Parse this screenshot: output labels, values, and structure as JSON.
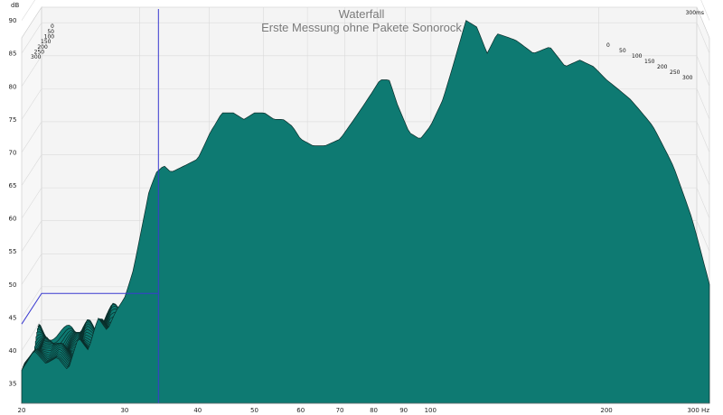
{
  "chart_data": {
    "type": "area",
    "title": "Waterfall",
    "subtitle": "Erste Messung ohne Pakete Sonorock",
    "y_unit_label": "dB",
    "x_unit_label": "Hz",
    "x_scale": "log",
    "xlim": [
      20,
      300
    ],
    "ylim": [
      32,
      92
    ],
    "x_ticks": [
      "20",
      "30",
      "40",
      "50",
      "60",
      "70",
      "80",
      "90",
      "100",
      "200",
      "300 Hz"
    ],
    "y_ticks": [
      "35",
      "40",
      "45",
      "50",
      "55",
      "60",
      "65",
      "70",
      "75",
      "80",
      "85",
      "90"
    ],
    "time_slices_ms": [
      "0",
      "50",
      "100",
      "150",
      "200",
      "250",
      "300"
    ],
    "time_axis_label_last": "300ms",
    "cursor_frequency_hz": 34,
    "fill_color": "#0e7a72",
    "line_color": "#0a2d2a",
    "front_curve": {
      "x": [
        20,
        21,
        22,
        23,
        24,
        25,
        26,
        27,
        28,
        29,
        30,
        31,
        32,
        33,
        34,
        35,
        36,
        38,
        40,
        42,
        44,
        46,
        48,
        50,
        52,
        54,
        56,
        58,
        60,
        63,
        66,
        70,
        74,
        78,
        82,
        85,
        88,
        92,
        96,
        100,
        105,
        110,
        115,
        120,
        125,
        130,
        140,
        150,
        160,
        170,
        180,
        190,
        200,
        220,
        240,
        260,
        280,
        300
      ],
      "y": [
        37,
        40,
        38,
        39,
        37,
        42,
        40,
        45,
        43,
        46,
        48,
        52,
        58,
        64,
        67,
        68,
        67,
        68,
        69,
        73,
        76,
        76,
        75,
        76,
        76,
        75,
        75,
        74,
        72,
        71,
        71,
        72,
        75,
        78,
        81,
        81,
        77,
        73,
        72,
        74,
        78,
        84,
        90,
        89,
        85,
        88,
        87,
        85,
        86,
        83,
        84,
        83,
        81,
        78,
        74,
        68,
        60,
        50
      ]
    }
  }
}
